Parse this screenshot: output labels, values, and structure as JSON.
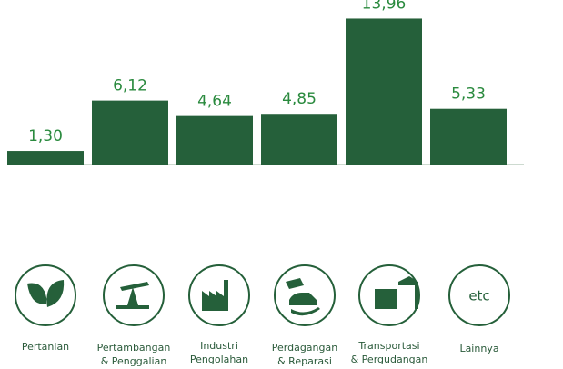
{
  "chart_data": {
    "type": "bar",
    "categories": [
      [
        "Pertanian"
      ],
      [
        "Pertambangan",
        "& Penggalian"
      ],
      [
        "Industri",
        "Pengolahan"
      ],
      [
        "Perdagangan",
        "& Reparasi"
      ],
      [
        "Transportasi",
        "& Pergudangan"
      ],
      [
        "Lainnya"
      ]
    ],
    "values": [
      1.3,
      6.12,
      4.64,
      4.85,
      13.96,
      5.33
    ],
    "value_labels": [
      "1,30",
      "6,12",
      "4,64",
      "4,85",
      "13,96",
      "5,33"
    ],
    "color": "#25603a",
    "label_color": "#2a8a3e",
    "ylim": [
      0,
      14
    ],
    "icon_text": "etc"
  }
}
